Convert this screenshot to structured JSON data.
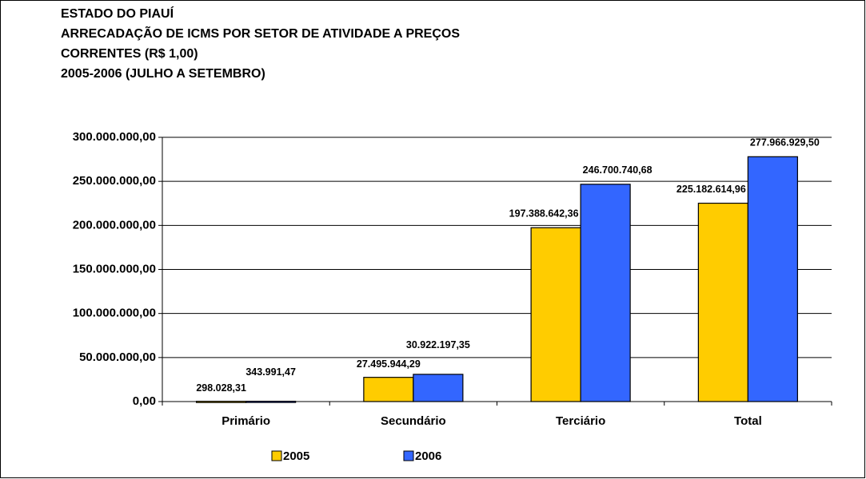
{
  "chart_data": {
    "type": "bar",
    "title": [
      "ESTADO DO PIAUÍ",
      "ARRECADAÇÃO DE ICMS POR SETOR DE ATIVIDADE A PREÇOS",
      "CORRENTES (R$ 1,00)",
      "2005-2006 (JULHO A SETEMBRO)"
    ],
    "categories": [
      "Primário",
      "Secundário",
      "Terciário",
      "Total"
    ],
    "series": [
      {
        "name": "2005",
        "color": "#ffcc00",
        "values": [
          298028.31,
          27495944.29,
          197388642.36,
          225182614.96
        ],
        "value_labels": [
          "298.028,31",
          "27.495.944,29",
          "197.388.642,36",
          "225.182.614,96"
        ]
      },
      {
        "name": "2006",
        "color": "#3366ff",
        "values": [
          343991.47,
          30922197.35,
          246700740.68,
          277966929.5
        ],
        "value_labels": [
          "343.991,47",
          "30.922.197,35",
          "246.700.740,68",
          "277.966.929,50"
        ]
      }
    ],
    "ylim": [
      0,
      300000000
    ],
    "yticks": [
      {
        "value": 0,
        "label": "0,00"
      },
      {
        "value": 50000000,
        "label": "50.000.000,00"
      },
      {
        "value": 100000000,
        "label": "100.000.000,00"
      },
      {
        "value": 150000000,
        "label": "150.000.000,00"
      },
      {
        "value": 200000000,
        "label": "200.000.000,00"
      },
      {
        "value": 250000000,
        "label": "250.000.000,00"
      },
      {
        "value": 300000000,
        "label": "300.000.000,00"
      }
    ],
    "grid": true
  }
}
